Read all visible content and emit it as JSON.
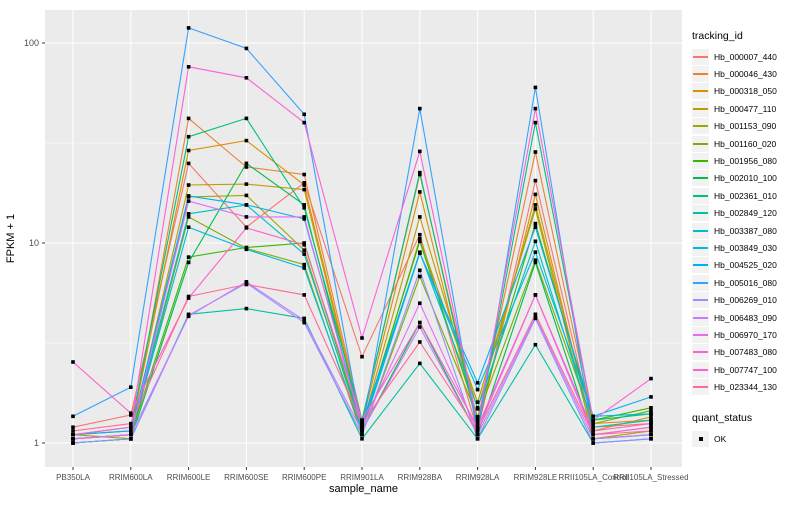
{
  "chart_data": {
    "type": "line",
    "title": "",
    "xlabel": "sample_name",
    "ylabel": "FPKM + 1",
    "y_scale": "log10",
    "y_ticks": [
      1,
      10,
      100
    ],
    "y_minor_ticks": [
      3.162,
      31.62
    ],
    "ylim": [
      0.85,
      150
    ],
    "grid": true,
    "legend_position": "right",
    "panel_bg": "#EBEBEB",
    "grid_color": "#FFFFFF",
    "marker_color": "#000000",
    "axis_text_color": "#4D4D4D",
    "categories": [
      "PB350LA",
      "RRIM600LA",
      "RRIM600LE",
      "RRIM600SE",
      "RRIM600PE",
      "RRIM901LA",
      "RRIM928BA",
      "RRIM928LA",
      "RRIM928LE",
      "RRII105LA_Control",
      "RRII105LA_Stressed"
    ],
    "legend_title": "tracking_id",
    "series": [
      {
        "name": "Hb_000007_440",
        "color": "#F8766D",
        "values": [
          1.2,
          1.38,
          25.0,
          12.0,
          20.0,
          2.7,
          11.0,
          1.15,
          20.5,
          1.2,
          1.25
        ]
      },
      {
        "name": "Hb_000046_430",
        "color": "#EA8331",
        "values": [
          1.05,
          1.1,
          42.0,
          24.0,
          22.0,
          1.3,
          22.0,
          1.3,
          28.5,
          1.25,
          1.3
        ]
      },
      {
        "name": "Hb_000318_050",
        "color": "#D89000",
        "values": [
          1.1,
          1.15,
          29.0,
          32.5,
          19.5,
          1.25,
          18.0,
          1.2,
          17.5,
          1.1,
          1.2
        ]
      },
      {
        "name": "Hb_000477_110",
        "color": "#C09B00",
        "values": [
          1.05,
          1.1,
          19.5,
          19.7,
          18.5,
          1.2,
          13.5,
          1.48,
          15.5,
          1.15,
          1.35
        ]
      },
      {
        "name": "Hb_001153_090",
        "color": "#A3A500",
        "values": [
          1.1,
          1.05,
          17.0,
          17.3,
          9.2,
          1.15,
          10.5,
          1.6,
          14.8,
          1.05,
          1.15
        ]
      },
      {
        "name": "Hb_001160_020",
        "color": "#7CAE00",
        "values": [
          1.0,
          1.05,
          13.5,
          9.4,
          7.8,
          1.1,
          6.8,
          1.35,
          8.2,
          1.25,
          1.45
        ]
      },
      {
        "name": "Hb_001956_080",
        "color": "#39B600",
        "values": [
          1.05,
          1.1,
          8.5,
          9.5,
          10.0,
          1.2,
          10.2,
          1.35,
          12.5,
          1.3,
          1.5
        ]
      },
      {
        "name": "Hb_002010_100",
        "color": "#00BB4E",
        "values": [
          1.0,
          1.05,
          8.0,
          25.0,
          15.5,
          1.15,
          4.0,
          1.1,
          8.0,
          1.05,
          1.1
        ]
      },
      {
        "name": "Hb_002361_010",
        "color": "#00BF7D",
        "values": [
          1.1,
          1.2,
          34.0,
          42.0,
          15.0,
          1.3,
          22.5,
          1.2,
          40.0,
          1.3,
          1.4
        ]
      },
      {
        "name": "Hb_002849_120",
        "color": "#00C1A3",
        "values": [
          1.0,
          1.05,
          4.4,
          4.7,
          4.2,
          1.05,
          2.5,
          1.05,
          3.1,
          1.0,
          1.05
        ]
      },
      {
        "name": "Hb_003387_080",
        "color": "#00BFC4",
        "values": [
          1.05,
          1.1,
          14.0,
          15.5,
          8.8,
          1.2,
          9.0,
          1.5,
          10.2,
          1.2,
          1.3
        ]
      },
      {
        "name": "Hb_003849_030",
        "color": "#00BBDA",
        "values": [
          1.05,
          1.1,
          12.0,
          9.3,
          7.5,
          1.15,
          8.9,
          1.85,
          9.0,
          1.36,
          1.4
        ]
      },
      {
        "name": "Hb_004525_020",
        "color": "#00B0F6",
        "values": [
          1.1,
          1.15,
          17.2,
          15.5,
          13.2,
          1.25,
          8.9,
          2.0,
          12.0,
          1.36,
          1.7
        ]
      },
      {
        "name": "Hb_005016_080",
        "color": "#35A2FF",
        "values": [
          1.36,
          1.9,
          119.0,
          94.0,
          44.0,
          1.15,
          47.0,
          1.1,
          60.0,
          1.05,
          1.1
        ]
      },
      {
        "name": "Hb_006269_010",
        "color": "#9590FF",
        "values": [
          1.0,
          1.05,
          4.35,
          6.3,
          4.0,
          1.1,
          7.3,
          1.05,
          4.2,
          1.0,
          1.05
        ]
      },
      {
        "name": "Hb_006483_090",
        "color": "#C77CFF",
        "values": [
          1.05,
          1.1,
          4.3,
          6.4,
          4.1,
          1.15,
          3.8,
          1.1,
          4.3,
          1.05,
          1.1
        ]
      },
      {
        "name": "Hb_006970_170",
        "color": "#E76BF3",
        "values": [
          1.05,
          1.1,
          16.2,
          13.5,
          13.5,
          1.2,
          5.0,
          1.15,
          5.5,
          1.1,
          1.2
        ]
      },
      {
        "name": "Hb_007483_080",
        "color": "#FA62DB",
        "values": [
          1.1,
          1.2,
          76.0,
          67.0,
          40.0,
          3.35,
          28.7,
          1.25,
          47.0,
          1.3,
          2.1
        ]
      },
      {
        "name": "Hb_007747_100",
        "color": "#FF61CC",
        "values": [
          2.54,
          1.41,
          5.3,
          11.9,
          9.8,
          1.3,
          4.0,
          1.2,
          5.5,
          1.15,
          1.25
        ]
      },
      {
        "name": "Hb_023344_130",
        "color": "#FF6A98",
        "values": [
          1.15,
          1.25,
          5.4,
          6.2,
          5.5,
          1.25,
          3.2,
          1.15,
          4.4,
          1.1,
          1.15
        ]
      }
    ],
    "quant_legend": {
      "title": "quant_status",
      "items": [
        {
          "label": "OK",
          "marker": "black-square"
        }
      ]
    }
  }
}
